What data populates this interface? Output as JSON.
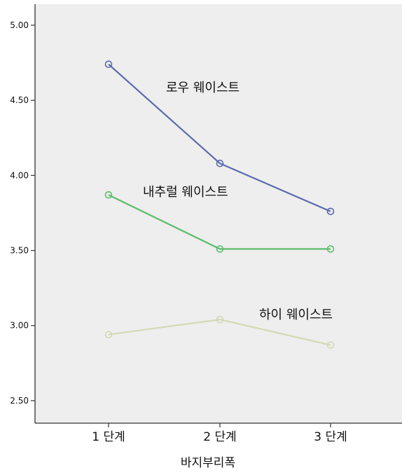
{
  "chart_data": {
    "type": "line",
    "categories": [
      "1 단계",
      "2 단계",
      "3 단계"
    ],
    "xlabel": "바지부리폭",
    "ylabel": "",
    "ylim": [
      2.35,
      5.14
    ],
    "yticks": [
      "2.50",
      "3.00",
      "3.50",
      "4.00",
      "4.50",
      "5.00"
    ],
    "ytick_values": [
      2.5,
      3.0,
      3.5,
      4.0,
      4.5,
      5.0
    ],
    "plot_background": "#eeeeee",
    "series": [
      {
        "name": "로우 웨이스트",
        "color": "#5a6aad",
        "values": [
          4.74,
          4.08,
          3.76
        ]
      },
      {
        "name": "내추럴 웨이스트",
        "color": "#5cbd6b",
        "values": [
          3.87,
          3.51,
          3.51
        ]
      },
      {
        "name": "하이 웨이스트",
        "color": "#d3d9b4",
        "values": [
          2.94,
          3.04,
          2.87
        ]
      }
    ]
  }
}
